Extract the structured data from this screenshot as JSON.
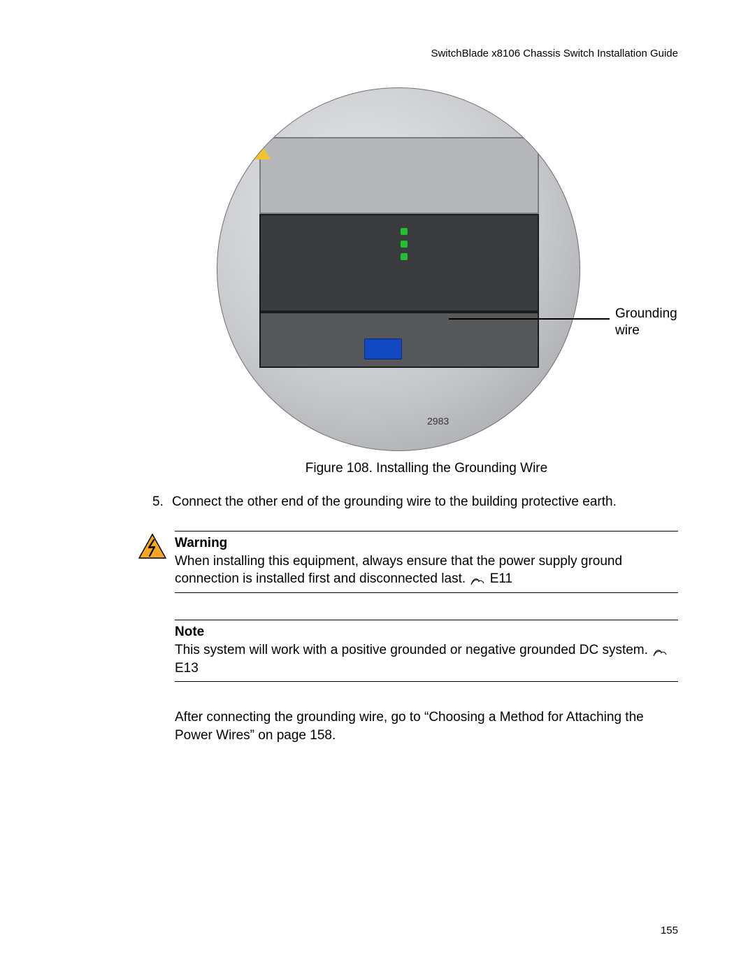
{
  "header": {
    "title": "SwitchBlade x8106 Chassis Switch Installation Guide"
  },
  "figure": {
    "callout_label": "Grounding\nwire",
    "internal_number": "2983",
    "caption": "Figure 108. Installing the Grounding Wire"
  },
  "step": {
    "number": "5.",
    "text": "Connect the other end of the grounding wire to the building protective earth."
  },
  "warning": {
    "heading": "Warning",
    "body_pre": "When installing this equipment, always ensure that the power supply ground connection is installed first and disconnected last. ",
    "code": "E11",
    "icon_colors": {
      "fill": "#f6a623",
      "stroke": "#000000",
      "bolt": "#000000"
    }
  },
  "note": {
    "heading": "Note",
    "body_pre": "This system will work with a positive grounded or negative grounded DC system. ",
    "code": "E13"
  },
  "after": {
    "text": "After connecting the grounding wire, go to “Choosing a Method for Attaching the Power Wires” on page 158."
  },
  "page_number": "155",
  "colors": {
    "text": "#000000",
    "background": "#ffffff",
    "rule": "#000000"
  },
  "typography": {
    "body_fontsize_pt": 14,
    "header_fontsize_pt": 11,
    "page_number_fontsize_pt": 11,
    "font_family": "Arial"
  }
}
